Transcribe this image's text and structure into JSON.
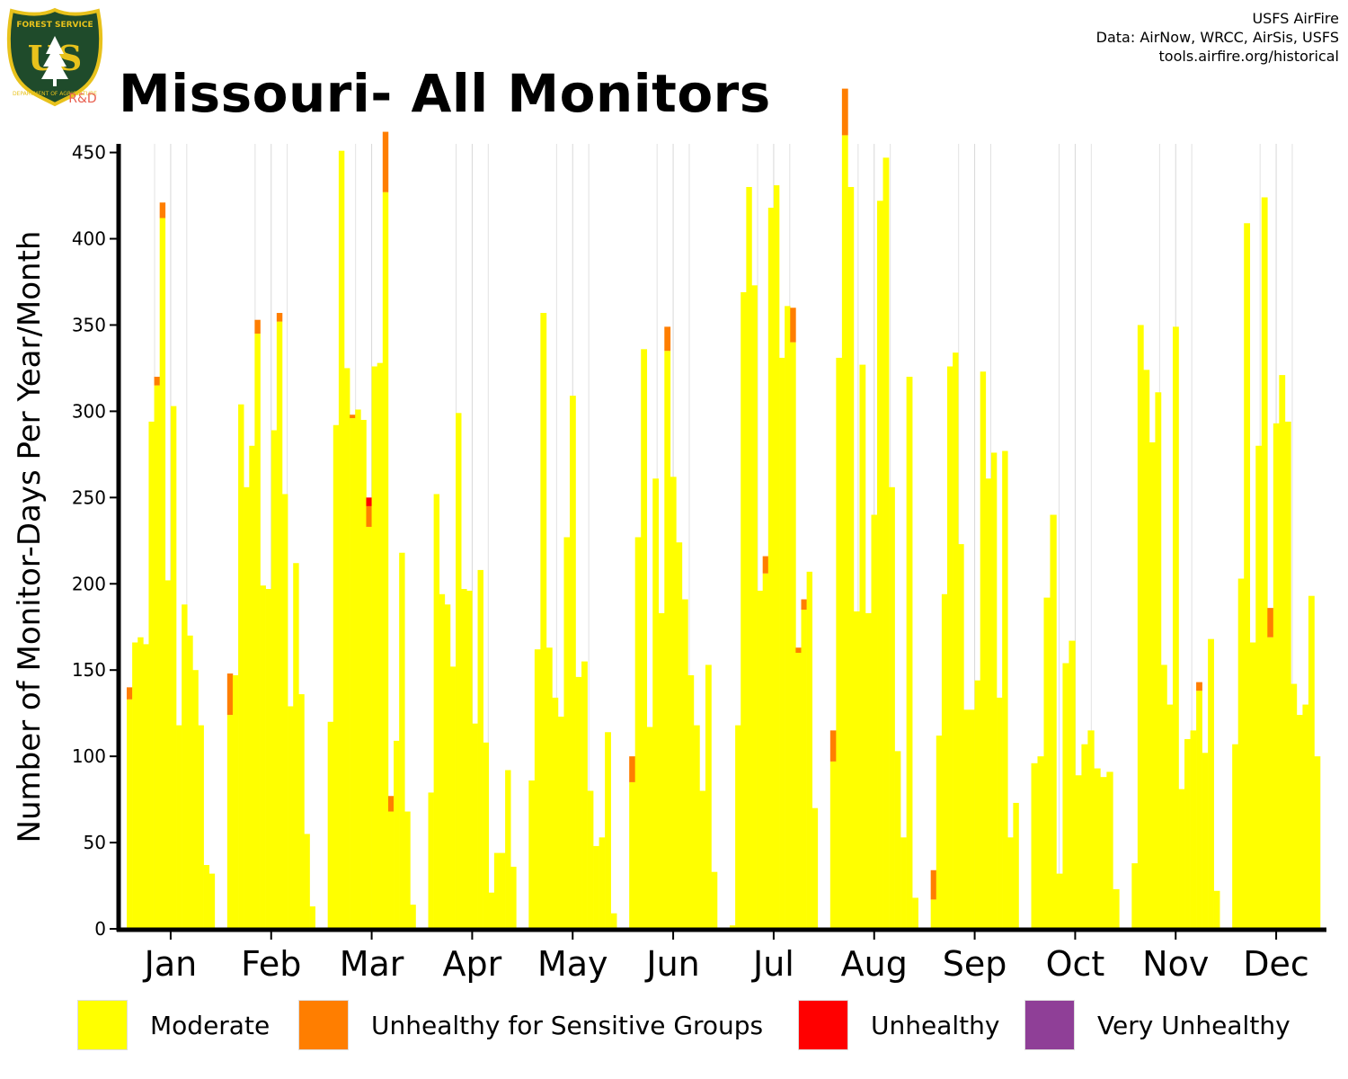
{
  "title": "Missouri- All Monitors",
  "credits": [
    "USFS AirFire",
    "Data: AirNow, WRCC, AirSis, USFS",
    "tools.airfire.org/historical"
  ],
  "logo": {
    "top_text": "FOREST SERVICE",
    "letters": "US",
    "bottom_text": "DEPARTMENT OF AGRICULTURE",
    "badge": "R&D",
    "colors": {
      "shield": "#1f4b2b",
      "trim": "#e8c21c",
      "badge": "#e86050"
    }
  },
  "colors": {
    "moderate": "#ffff00",
    "usg": "#ff7e00",
    "unhealthy": "#ff0000",
    "very_unhealthy": "#8f3f97"
  },
  "legend": [
    {
      "label": "Moderate",
      "color": "#ffff00"
    },
    {
      "label": "Unhealthy for Sensitive Groups",
      "color": "#ff7e00"
    },
    {
      "label": "Unhealthy",
      "color": "#ff0000"
    },
    {
      "label": "Very Unhealthy",
      "color": "#8f3f97"
    }
  ],
  "chart_data": {
    "type": "bar",
    "stacked": true,
    "ylabel": "Number of Monitor-Days Per Year/Month",
    "xlabel": "",
    "ylim": [
      0,
      455
    ],
    "yticks": [
      0,
      50,
      100,
      150,
      200,
      250,
      300,
      350,
      400,
      450
    ],
    "grid": "vertical lines only",
    "legend_position": "bottom",
    "categories": [
      "Jan",
      "Feb",
      "Mar",
      "Apr",
      "May",
      "Jun",
      "Jul",
      "Aug",
      "Sep",
      "Oct",
      "Nov",
      "Dec"
    ],
    "series": [
      {
        "name": "Moderate",
        "values": [
          [
            133,
            166,
            169,
            165,
            294,
            315,
            412,
            202,
            303,
            118,
            188,
            170,
            150,
            118,
            37,
            32
          ],
          [
            124,
            147,
            304,
            256,
            280,
            345,
            199,
            197,
            289,
            352,
            252,
            129,
            212,
            136,
            55,
            13
          ],
          [
            120,
            292,
            451,
            325,
            296,
            301,
            295,
            233,
            326,
            328,
            427,
            68,
            109,
            218,
            68,
            14
          ],
          [
            79,
            252,
            194,
            188,
            152,
            299,
            197,
            196,
            119,
            208,
            108,
            21,
            44,
            44,
            92,
            36
          ],
          [
            86,
            162,
            357,
            163,
            134,
            123,
            227,
            309,
            146,
            155,
            80,
            48,
            53,
            114,
            9
          ],
          [
            85,
            227,
            336,
            117,
            261,
            183,
            335,
            262,
            224,
            191,
            147,
            118,
            80,
            153,
            33
          ],
          [
            2,
            118,
            369,
            430,
            373,
            196,
            206,
            418,
            431,
            331,
            361,
            340,
            160,
            185,
            207,
            70
          ],
          [
            97,
            331,
            460,
            430,
            184,
            327,
            183,
            240,
            422,
            447,
            256,
            103,
            53,
            320,
            18
          ],
          [
            17,
            112,
            194,
            326,
            334,
            223,
            127,
            127,
            144,
            323,
            261,
            276,
            134,
            277,
            53,
            73
          ],
          [
            96,
            100,
            192,
            240,
            32,
            154,
            167,
            89,
            107,
            115,
            93,
            88,
            91,
            23
          ],
          [
            38,
            350,
            324,
            282,
            311,
            153,
            130,
            349,
            81,
            110,
            115,
            138,
            102,
            168,
            22
          ],
          [
            107,
            203,
            409,
            166,
            280,
            424,
            169,
            293,
            321,
            294,
            142,
            124,
            130,
            193,
            100
          ]
        ]
      },
      {
        "name": "Unhealthy for Sensitive Groups",
        "values": [
          [
            7,
            0,
            0,
            0,
            0,
            5,
            9,
            0,
            0,
            0,
            0,
            0,
            0,
            0,
            0,
            0
          ],
          [
            24,
            0,
            0,
            0,
            0,
            8,
            0,
            0,
            0,
            5,
            0,
            0,
            0,
            0,
            0,
            0
          ],
          [
            0,
            0,
            0,
            0,
            2,
            0,
            0,
            12,
            0,
            0,
            35,
            9,
            0,
            0,
            0,
            0
          ],
          [
            0,
            0,
            0,
            0,
            0,
            0,
            0,
            0,
            0,
            0,
            0,
            0,
            0,
            0,
            0,
            0
          ],
          [
            0,
            0,
            0,
            0,
            0,
            0,
            0,
            0,
            0,
            0,
            0,
            0,
            0,
            0,
            0
          ],
          [
            15,
            0,
            0,
            0,
            0,
            0,
            14,
            0,
            0,
            0,
            0,
            0,
            0,
            0,
            0
          ],
          [
            0,
            0,
            0,
            0,
            0,
            0,
            10,
            0,
            0,
            0,
            0,
            20,
            3,
            6,
            0,
            0
          ],
          [
            18,
            0,
            27,
            0,
            0,
            0,
            0,
            0,
            0,
            0,
            0,
            0,
            0,
            0,
            0
          ],
          [
            17,
            0,
            0,
            0,
            0,
            0,
            0,
            0,
            0,
            0,
            0,
            0,
            0,
            0,
            0,
            0
          ],
          [
            0,
            0,
            0,
            0,
            0,
            0,
            0,
            0,
            0,
            0,
            0,
            0,
            0,
            0
          ],
          [
            0,
            0,
            0,
            0,
            0,
            0,
            0,
            0,
            0,
            0,
            0,
            5,
            0,
            0,
            0
          ],
          [
            0,
            0,
            0,
            0,
            0,
            0,
            17,
            0,
            0,
            0,
            0,
            0,
            0,
            0,
            0
          ]
        ]
      },
      {
        "name": "Unhealthy",
        "values": [
          [
            0,
            0,
            0,
            0,
            0,
            0,
            0,
            0,
            0,
            0,
            0,
            0,
            0,
            0,
            0,
            0
          ],
          [
            0,
            0,
            0,
            0,
            0,
            0,
            0,
            0,
            0,
            0,
            0,
            0,
            0,
            0,
            0,
            0
          ],
          [
            0,
            0,
            0,
            0,
            0,
            0,
            0,
            5,
            0,
            0,
            0,
            0,
            0,
            0,
            0,
            0
          ],
          [
            0,
            0,
            0,
            0,
            0,
            0,
            0,
            0,
            0,
            0,
            0,
            0,
            0,
            0,
            0,
            0
          ],
          [
            0,
            0,
            0,
            0,
            0,
            0,
            0,
            0,
            0,
            0,
            0,
            0,
            0,
            0,
            0
          ],
          [
            0,
            0,
            0,
            0,
            0,
            0,
            0,
            0,
            0,
            0,
            0,
            0,
            0,
            0,
            0
          ],
          [
            0,
            0,
            0,
            0,
            0,
            0,
            0,
            0,
            0,
            0,
            0,
            0,
            0,
            0,
            0,
            0
          ],
          [
            0,
            0,
            0,
            0,
            0,
            0,
            0,
            0,
            0,
            0,
            0,
            0,
            0,
            0,
            0
          ],
          [
            0,
            0,
            0,
            0,
            0,
            0,
            0,
            0,
            0,
            0,
            0,
            0,
            0,
            0,
            0,
            0
          ],
          [
            0,
            0,
            0,
            0,
            0,
            0,
            0,
            0,
            0,
            0,
            0,
            0,
            0,
            0
          ],
          [
            0,
            0,
            0,
            0,
            0,
            0,
            0,
            0,
            0,
            0,
            0,
            0,
            0,
            0,
            0
          ],
          [
            0,
            0,
            0,
            0,
            0,
            0,
            0,
            0,
            0,
            0,
            0,
            0,
            0,
            0,
            0
          ]
        ]
      },
      {
        "name": "Very Unhealthy",
        "values": [
          [
            0,
            0,
            0,
            0,
            0,
            0,
            0,
            0,
            0,
            0,
            0,
            0,
            0,
            0,
            0,
            0
          ],
          [
            0,
            0,
            0,
            0,
            0,
            0,
            0,
            0,
            0,
            0,
            0,
            0,
            0,
            0,
            0,
            0
          ],
          [
            0,
            0,
            0,
            0,
            0,
            0,
            0,
            0,
            0,
            0,
            0,
            0,
            0,
            0,
            0,
            0
          ],
          [
            0,
            0,
            0,
            0,
            0,
            0,
            0,
            0,
            0,
            0,
            0,
            0,
            0,
            0,
            0,
            0
          ],
          [
            0,
            0,
            0,
            0,
            0,
            0,
            0,
            0,
            0,
            0,
            0,
            0,
            0,
            0,
            0
          ],
          [
            0,
            0,
            0,
            0,
            0,
            0,
            0,
            0,
            0,
            0,
            0,
            0,
            0,
            0,
            0
          ],
          [
            0,
            0,
            0,
            0,
            0,
            0,
            0,
            0,
            0,
            0,
            0,
            0,
            0,
            0,
            0,
            0
          ],
          [
            0,
            0,
            0,
            0,
            0,
            0,
            0,
            0,
            0,
            0,
            0,
            0,
            0,
            0,
            0
          ],
          [
            0,
            0,
            0,
            0,
            0,
            0,
            0,
            0,
            0,
            0,
            0,
            0,
            0,
            0,
            0,
            0
          ],
          [
            0,
            0,
            0,
            0,
            0,
            0,
            0,
            0,
            0,
            0,
            0,
            0,
            0,
            0
          ],
          [
            0,
            0,
            0,
            0,
            0,
            0,
            0,
            0,
            0,
            0,
            0,
            0,
            0,
            0,
            0
          ],
          [
            0,
            0,
            0,
            0,
            0,
            0,
            0,
            0,
            0,
            0,
            0,
            0,
            0,
            0,
            0
          ]
        ]
      }
    ]
  }
}
